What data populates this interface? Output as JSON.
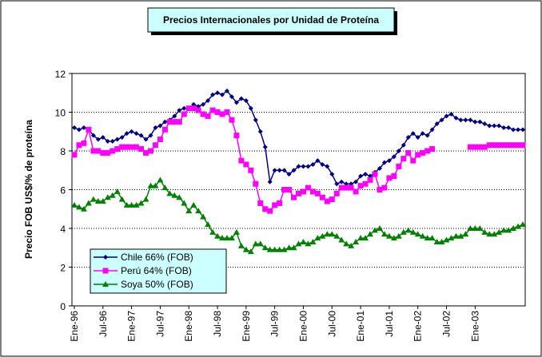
{
  "chart_data": {
    "type": "line",
    "title": "Precios Internacionales por Unidad de Proteína",
    "y_label": "Precio FOB US$/% de proteína",
    "categories": [
      "Ene-96",
      null,
      null,
      null,
      null,
      null,
      "Jul-96",
      null,
      null,
      null,
      null,
      null,
      "Ene-97",
      null,
      null,
      null,
      null,
      null,
      "Jul-97",
      null,
      null,
      null,
      null,
      null,
      "Ene-98",
      null,
      null,
      null,
      null,
      null,
      "Jul-98",
      null,
      null,
      null,
      null,
      null,
      "Ene-99",
      null,
      null,
      null,
      null,
      null,
      "Jul-99",
      null,
      null,
      null,
      null,
      null,
      "Ene-00",
      null,
      null,
      null,
      null,
      null,
      "Jul-00",
      null,
      null,
      null,
      null,
      null,
      "Ene-01",
      null,
      null,
      null,
      null,
      null,
      "Jul-01",
      null,
      null,
      null,
      null,
      null,
      "Ene-02",
      null,
      null,
      null,
      null,
      null,
      "Jul-02",
      null,
      null,
      null,
      null,
      null,
      "Ene-03",
      null,
      null,
      null,
      null,
      null,
      null,
      null,
      null,
      null,
      null
    ],
    "series": [
      {
        "name": "Chile 66% (FOB)",
        "color": "#000080",
        "marker": "diamond",
        "values": [
          9.2,
          9.1,
          9.2,
          9.1,
          8.8,
          8.6,
          8.7,
          8.5,
          8.5,
          8.6,
          8.7,
          8.9,
          9.0,
          8.9,
          8.8,
          8.6,
          8.8,
          9.2,
          9.3,
          9.5,
          9.6,
          9.8,
          10.1,
          10.2,
          10.2,
          10.4,
          10.3,
          10.4,
          10.6,
          10.9,
          11.0,
          10.9,
          11.1,
          10.8,
          10.5,
          10.7,
          10.6,
          10.2,
          9.6,
          9.0,
          8.2,
          6.4,
          7.0,
          7.0,
          7.0,
          6.8,
          7.0,
          7.2,
          7.2,
          7.2,
          7.3,
          7.5,
          7.3,
          7.2,
          6.8,
          6.3,
          6.4,
          6.3,
          6.3,
          6.4,
          6.7,
          6.8,
          6.7,
          6.9,
          7.1,
          7.4,
          7.5,
          7.7,
          8.0,
          8.3,
          8.7,
          8.9,
          8.7,
          8.9,
          8.8,
          9.1,
          9.4,
          9.6,
          9.8,
          9.9,
          9.7,
          9.6,
          9.6,
          9.6,
          9.5,
          9.5,
          9.4,
          9.3,
          9.3,
          9.3,
          9.2,
          9.2,
          9.1,
          9.1,
          9.1
        ]
      },
      {
        "name": "Perú 64% (FOB)",
        "color": "#ff00ff",
        "marker": "square",
        "values": [
          7.8,
          8.3,
          8.4,
          9.1,
          8.0,
          8.0,
          7.9,
          7.9,
          8.0,
          8.1,
          8.2,
          8.2,
          8.2,
          8.2,
          8.1,
          7.9,
          8.0,
          8.3,
          8.6,
          9.1,
          9.5,
          9.5,
          9.5,
          9.9,
          10.2,
          10.2,
          10.1,
          9.9,
          9.8,
          10.1,
          10.0,
          9.9,
          10.0,
          9.6,
          8.8,
          7.5,
          7.3,
          7.0,
          6.3,
          5.3,
          5.0,
          4.9,
          5.2,
          5.3,
          6.0,
          6.0,
          5.6,
          5.8,
          5.9,
          6.1,
          5.9,
          5.8,
          5.6,
          5.4,
          5.5,
          5.8,
          6.1,
          6.1,
          6.1,
          5.9,
          6.2,
          6.3,
          6.5,
          6.8,
          6.0,
          6.1,
          6.6,
          6.7,
          7.2,
          7.6,
          7.9,
          7.5,
          7.8,
          7.9,
          8.0,
          8.1,
          null,
          null,
          null,
          null,
          null,
          null,
          null,
          8.2,
          8.2,
          8.2,
          8.2,
          8.3,
          8.3,
          8.3,
          8.3,
          8.3,
          8.3,
          8.3,
          8.3
        ]
      },
      {
        "name": "Soya 50% (FOB)",
        "color": "#008000",
        "marker": "triangle",
        "values": [
          5.2,
          5.1,
          5.0,
          5.3,
          5.5,
          5.4,
          5.4,
          5.6,
          5.7,
          5.9,
          5.5,
          5.2,
          5.2,
          5.2,
          5.3,
          5.5,
          6.2,
          6.2,
          6.5,
          6.1,
          5.8,
          5.7,
          5.6,
          5.3,
          4.9,
          5.2,
          4.9,
          4.6,
          4.2,
          3.8,
          3.6,
          3.5,
          3.5,
          3.5,
          3.8,
          3.1,
          2.9,
          2.8,
          3.2,
          3.2,
          3.0,
          2.9,
          2.9,
          2.9,
          2.9,
          3.0,
          3.0,
          3.2,
          3.3,
          3.2,
          3.3,
          3.5,
          3.6,
          3.7,
          3.7,
          3.6,
          3.4,
          3.2,
          3.1,
          3.3,
          3.5,
          3.5,
          3.7,
          3.9,
          4.0,
          3.7,
          3.6,
          3.5,
          3.6,
          3.8,
          3.9,
          3.8,
          3.7,
          3.6,
          3.5,
          3.5,
          3.3,
          3.3,
          3.4,
          3.5,
          3.6,
          3.6,
          3.7,
          4.0,
          4.0,
          4.0,
          3.8,
          3.7,
          3.7,
          3.8,
          3.9,
          3.9,
          4.0,
          4.1,
          4.2
        ]
      }
    ],
    "ylim": [
      0,
      12
    ],
    "yticks": [
      0,
      2,
      4,
      6,
      8,
      10,
      12
    ],
    "grid": true,
    "legend": "lower left"
  }
}
